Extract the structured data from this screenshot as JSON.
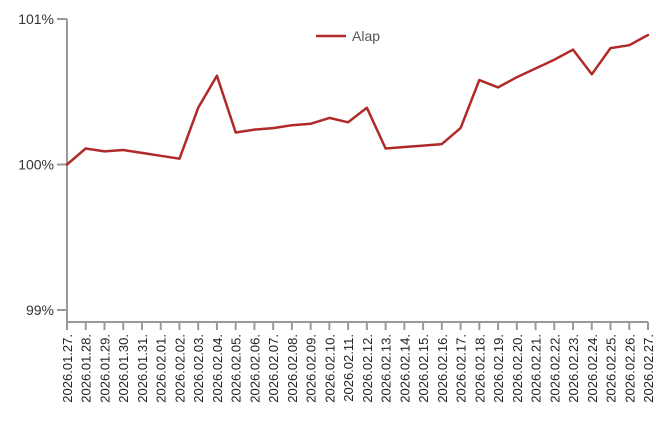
{
  "chart_data": {
    "type": "line",
    "title": "",
    "xlabel": "",
    "ylabel": "",
    "ylim": [
      99,
      101
    ],
    "y_ticks": [
      {
        "value": 101,
        "label": "101%"
      },
      {
        "value": 100,
        "label": "100%"
      },
      {
        "value": 99,
        "label": "99%"
      }
    ],
    "grid": false,
    "legend_position": "top-center",
    "colors": {
      "series": "#b02a2a",
      "axis": "#999999"
    },
    "categories": [
      "2026.01.27.",
      "2026.01.28.",
      "2026.01.29.",
      "2026.01.30.",
      "2026.01.31.",
      "2026.02.01.",
      "2026.02.02.",
      "2026.02.03.",
      "2026.02.04.",
      "2026.02.05.",
      "2026.02.06.",
      "2026.02.07.",
      "2026.02.08.",
      "2026.02.09.",
      "2026.02.10.",
      "2026.02.11.",
      "2026.02.12.",
      "2026.02.13.",
      "2026.02.14.",
      "2026.02.15.",
      "2026.02.16.",
      "2026.02.17.",
      "2026.02.18.",
      "2026.02.19.",
      "2026.02.20.",
      "2026.02.21.",
      "2026.02.22.",
      "2026.02.23.",
      "2026.02.24.",
      "2026.02.25.",
      "2026.02.26.",
      "2026.02.27."
    ],
    "series": [
      {
        "name": "Alap",
        "values": [
          100.0,
          100.11,
          100.09,
          100.1,
          100.08,
          100.06,
          100.04,
          100.39,
          100.61,
          100.22,
          100.24,
          100.25,
          100.27,
          100.28,
          100.32,
          100.29,
          100.39,
          100.11,
          100.12,
          100.13,
          100.14,
          100.25,
          100.58,
          100.53,
          100.6,
          100.66,
          100.72,
          100.79,
          100.62,
          100.8,
          100.82,
          100.89
        ]
      }
    ]
  }
}
